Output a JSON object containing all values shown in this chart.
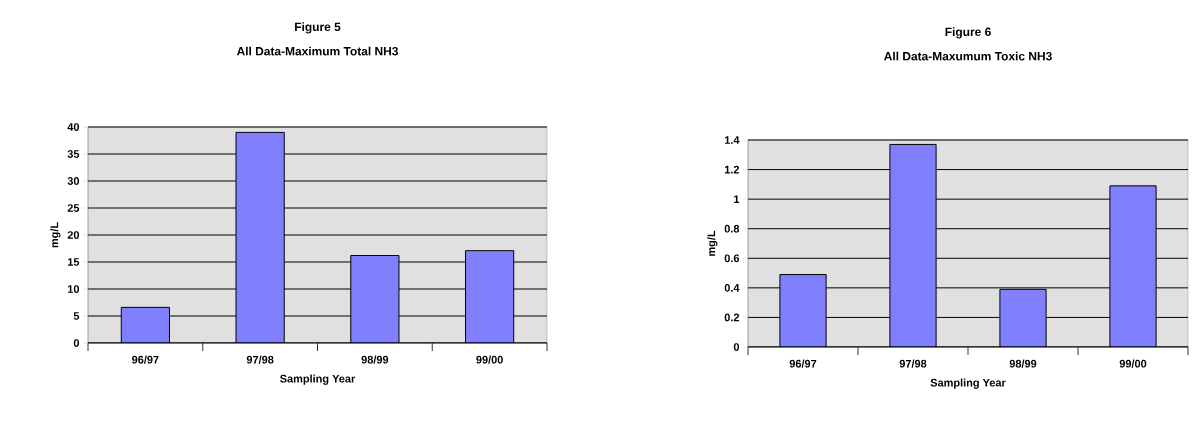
{
  "chart_data": [
    {
      "type": "bar",
      "title": "Figure 5",
      "subtitle": "All Data-Maximum Total NH3",
      "xlabel": "Sampling Year",
      "ylabel": "mg/L",
      "categories": [
        "96/97",
        "97/98",
        "98/99",
        "99/00"
      ],
      "values": [
        6.6,
        39.0,
        16.2,
        17.1
      ],
      "color": "#8080ff",
      "ylim": [
        0,
        40
      ],
      "yticks": [
        0,
        5,
        10,
        15,
        20,
        25,
        30,
        35,
        40
      ],
      "grid": "y"
    },
    {
      "type": "bar",
      "title": "Figure 6",
      "subtitle": "All Data-Maxumum Toxic NH3",
      "xlabel": "Sampling Year",
      "ylabel": "mg/L",
      "categories": [
        "96/97",
        "97/98",
        "98/99",
        "99/00"
      ],
      "values": [
        0.49,
        1.37,
        0.39,
        1.09
      ],
      "color": "#8080ff",
      "ylim": [
        0,
        1.4
      ],
      "yticks": [
        0,
        0.2,
        0.4,
        0.6,
        0.8,
        1,
        1.2,
        1.4
      ],
      "grid": "y"
    }
  ]
}
